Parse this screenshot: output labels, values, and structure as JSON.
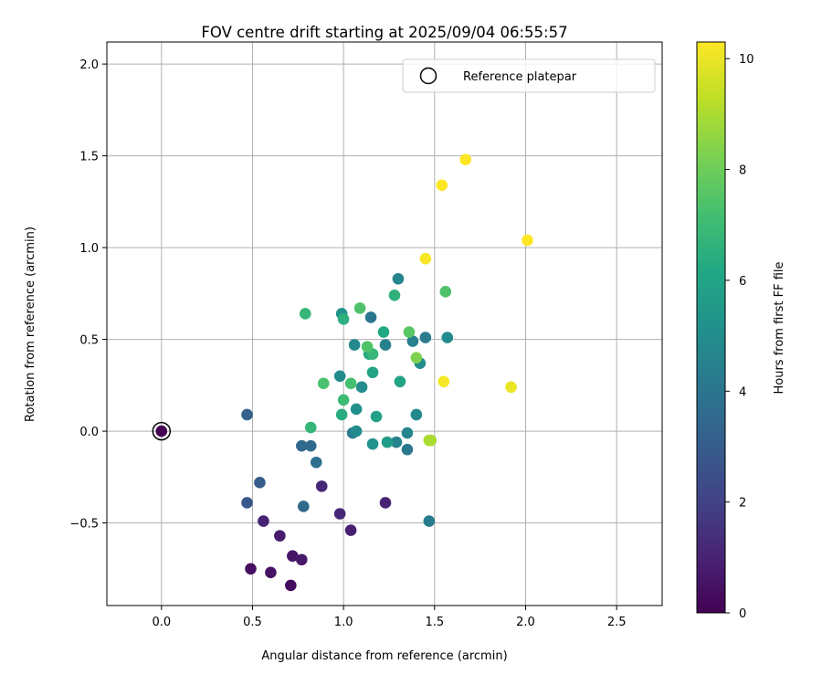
{
  "chart_data": {
    "type": "scatter",
    "title": "FOV centre drift starting at 2025/09/04 06:55:57",
    "xlabel": "Angular distance from reference (arcmin)",
    "ylabel": "Rotation from reference (arcmin)",
    "xlim": [
      -0.3,
      2.75
    ],
    "ylim": [
      -0.95,
      2.12
    ],
    "xticks": [
      0.0,
      0.5,
      1.0,
      1.5,
      2.0,
      2.5
    ],
    "xtick_labels": [
      "0.0",
      "0.5",
      "1.0",
      "1.5",
      "2.0",
      "2.5"
    ],
    "yticks": [
      -0.5,
      0.0,
      0.5,
      1.0,
      1.5,
      2.0
    ],
    "ytick_labels": [
      "−0.5",
      "0.0",
      "0.5",
      "1.0",
      "1.5",
      "2.0"
    ],
    "grid": true,
    "legend": {
      "position": "top-right",
      "label": "Reference platepar"
    },
    "reference_point": {
      "x": 0.0,
      "y": 0.0,
      "hours": 0
    },
    "colorbar": {
      "label": "Hours from first FF file",
      "min": 0,
      "max": 10.3,
      "ticks": [
        0,
        2,
        4,
        6,
        8,
        10
      ],
      "tick_labels": [
        "0",
        "2",
        "4",
        "6",
        "8",
        "10"
      ],
      "colormap": "viridis"
    },
    "points": [
      {
        "x": 0.71,
        "y": -0.84,
        "hours": 0.3
      },
      {
        "x": 0.49,
        "y": -0.75,
        "hours": 0.4
      },
      {
        "x": 0.6,
        "y": -0.77,
        "hours": 0.5
      },
      {
        "x": 0.72,
        "y": -0.68,
        "hours": 0.6
      },
      {
        "x": 0.77,
        "y": -0.7,
        "hours": 0.7
      },
      {
        "x": 0.65,
        "y": -0.57,
        "hours": 0.8
      },
      {
        "x": 0.56,
        "y": -0.49,
        "hours": 1.0
      },
      {
        "x": 1.04,
        "y": -0.54,
        "hours": 0.9
      },
      {
        "x": 0.98,
        "y": -0.45,
        "hours": 1.1
      },
      {
        "x": 1.23,
        "y": -0.39,
        "hours": 1.0
      },
      {
        "x": 0.88,
        "y": -0.3,
        "hours": 1.2
      },
      {
        "x": 0.47,
        "y": -0.39,
        "hours": 2.8
      },
      {
        "x": 0.54,
        "y": -0.28,
        "hours": 3.0
      },
      {
        "x": 0.47,
        "y": 0.09,
        "hours": 3.2
      },
      {
        "x": 0.78,
        "y": -0.41,
        "hours": 3.5
      },
      {
        "x": 0.77,
        "y": -0.08,
        "hours": 3.5
      },
      {
        "x": 0.82,
        "y": -0.08,
        "hours": 3.6
      },
      {
        "x": 0.85,
        "y": -0.17,
        "hours": 3.7
      },
      {
        "x": 1.47,
        "y": -0.49,
        "hours": 4.3
      },
      {
        "x": 1.35,
        "y": -0.1,
        "hours": 4.1
      },
      {
        "x": 1.05,
        "y": -0.01,
        "hours": 4.2
      },
      {
        "x": 1.29,
        "y": -0.06,
        "hours": 4.6
      },
      {
        "x": 1.35,
        "y": -0.01,
        "hours": 4.7
      },
      {
        "x": 1.16,
        "y": -0.07,
        "hours": 5.2
      },
      {
        "x": 1.07,
        "y": 0.0,
        "hours": 5.0
      },
      {
        "x": 1.07,
        "y": 0.12,
        "hours": 5.1
      },
      {
        "x": 1.24,
        "y": -0.06,
        "hours": 5.6
      },
      {
        "x": 1.18,
        "y": 0.08,
        "hours": 5.8
      },
      {
        "x": 1.4,
        "y": 0.09,
        "hours": 4.8
      },
      {
        "x": 0.98,
        "y": 0.3,
        "hours": 4.9
      },
      {
        "x": 1.1,
        "y": 0.24,
        "hours": 5.0
      },
      {
        "x": 1.06,
        "y": 0.47,
        "hours": 4.8
      },
      {
        "x": 1.15,
        "y": 0.62,
        "hours": 4.0
      },
      {
        "x": 1.23,
        "y": 0.47,
        "hours": 4.5
      },
      {
        "x": 1.38,
        "y": 0.49,
        "hours": 4.4
      },
      {
        "x": 1.45,
        "y": 0.51,
        "hours": 4.3
      },
      {
        "x": 1.42,
        "y": 0.37,
        "hours": 5.0
      },
      {
        "x": 1.57,
        "y": 0.51,
        "hours": 5.0
      },
      {
        "x": 1.3,
        "y": 0.83,
        "hours": 4.7
      },
      {
        "x": 0.99,
        "y": 0.64,
        "hours": 5.2
      },
      {
        "x": 1.16,
        "y": 0.32,
        "hours": 6.0
      },
      {
        "x": 1.31,
        "y": 0.27,
        "hours": 6.0
      },
      {
        "x": 1.14,
        "y": 0.42,
        "hours": 6.3
      },
      {
        "x": 1.16,
        "y": 0.42,
        "hours": 6.8
      },
      {
        "x": 1.22,
        "y": 0.54,
        "hours": 6.2
      },
      {
        "x": 1.28,
        "y": 0.74,
        "hours": 6.6
      },
      {
        "x": 1.0,
        "y": 0.61,
        "hours": 6.5
      },
      {
        "x": 0.99,
        "y": 0.09,
        "hours": 6.4
      },
      {
        "x": 0.82,
        "y": 0.02,
        "hours": 6.8
      },
      {
        "x": 1.0,
        "y": 0.17,
        "hours": 7.0
      },
      {
        "x": 1.04,
        "y": 0.26,
        "hours": 7.2
      },
      {
        "x": 0.89,
        "y": 0.26,
        "hours": 7.3
      },
      {
        "x": 0.79,
        "y": 0.64,
        "hours": 6.8
      },
      {
        "x": 1.09,
        "y": 0.67,
        "hours": 7.4
      },
      {
        "x": 1.13,
        "y": 0.46,
        "hours": 7.4
      },
      {
        "x": 1.36,
        "y": 0.54,
        "hours": 7.6
      },
      {
        "x": 1.56,
        "y": 0.76,
        "hours": 7.4
      },
      {
        "x": 1.4,
        "y": 0.4,
        "hours": 8.3
      },
      {
        "x": 1.48,
        "y": -0.05,
        "hours": 8.9
      },
      {
        "x": 1.47,
        "y": -0.05,
        "hours": 9.0
      },
      {
        "x": 1.92,
        "y": 0.24,
        "hours": 10.0
      },
      {
        "x": 1.55,
        "y": 0.27,
        "hours": 10.2
      },
      {
        "x": 1.45,
        "y": 0.94,
        "hours": 10.2
      },
      {
        "x": 1.54,
        "y": 1.34,
        "hours": 10.3
      },
      {
        "x": 1.67,
        "y": 1.48,
        "hours": 10.3
      },
      {
        "x": 2.01,
        "y": 1.04,
        "hours": 10.3
      }
    ]
  }
}
